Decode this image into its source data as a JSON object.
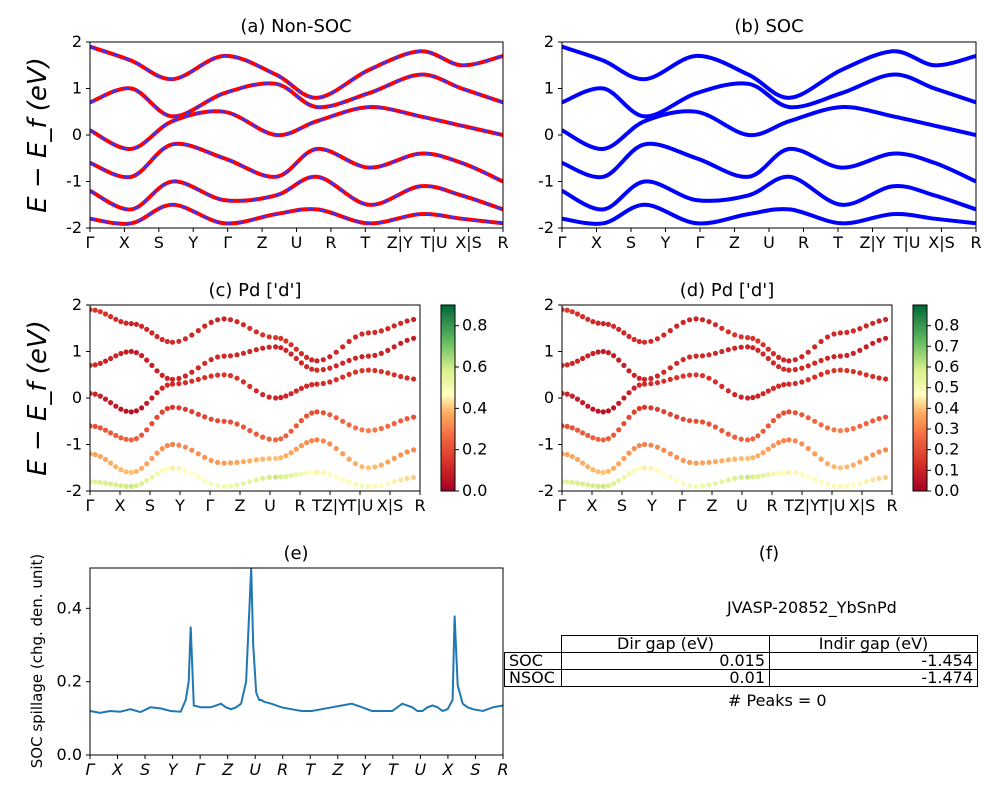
{
  "chart_data": [
    {
      "id": "a",
      "type": "line",
      "title": "(a) Non-SOC",
      "ylabel": "E − E_f (eV)",
      "ylim": [
        -2,
        2
      ],
      "yticks": [
        -2,
        -1,
        0,
        1,
        2
      ],
      "xticklabels": [
        "Γ",
        "X",
        "S",
        "Y",
        "Γ",
        "Z",
        "U",
        "R",
        "T",
        "Z|Y",
        "T|U",
        "X|S",
        "R"
      ],
      "colors": {
        "band": "#ff0000",
        "overlay": "#3333ff"
      },
      "series": [
        {
          "x": [
            0,
            40,
            80,
            130,
            180,
            220,
            270,
            320,
            360,
            400
          ],
          "y": [
            1.9,
            1.6,
            1.2,
            1.7,
            1.3,
            0.8,
            1.4,
            1.8,
            1.5,
            1.7
          ]
        },
        {
          "x": [
            0,
            40,
            80,
            130,
            180,
            220,
            270,
            320,
            360,
            400
          ],
          "y": [
            0.7,
            1.0,
            0.4,
            0.9,
            1.1,
            0.6,
            0.9,
            1.3,
            1.0,
            0.7
          ]
        },
        {
          "x": [
            0,
            40,
            80,
            130,
            180,
            220,
            270,
            320,
            360,
            400
          ],
          "y": [
            0.1,
            -0.3,
            0.3,
            0.5,
            0.0,
            0.3,
            0.6,
            0.4,
            0.2,
            0.0
          ]
        },
        {
          "x": [
            0,
            40,
            80,
            130,
            180,
            220,
            270,
            320,
            360,
            400
          ],
          "y": [
            -0.6,
            -0.9,
            -0.2,
            -0.5,
            -0.9,
            -0.3,
            -0.7,
            -0.4,
            -0.6,
            -1.0
          ]
        },
        {
          "x": [
            0,
            40,
            80,
            130,
            180,
            220,
            270,
            320,
            360,
            400
          ],
          "y": [
            -1.2,
            -1.6,
            -1.0,
            -1.4,
            -1.3,
            -0.9,
            -1.5,
            -1.1,
            -1.3,
            -1.6
          ]
        },
        {
          "x": [
            0,
            40,
            80,
            130,
            180,
            220,
            270,
            320,
            360,
            400
          ],
          "y": [
            -1.8,
            -1.9,
            -1.5,
            -1.9,
            -1.7,
            -1.6,
            -1.9,
            -1.7,
            -1.8,
            -1.9
          ]
        }
      ]
    },
    {
      "id": "b",
      "type": "line",
      "title": "(b) SOC",
      "ylim": [
        -2,
        2
      ],
      "yticks": [
        -2,
        -1,
        0,
        1,
        2
      ],
      "xticklabels": [
        "Γ",
        "X",
        "S",
        "Y",
        "Γ",
        "Z",
        "U",
        "R",
        "T",
        "Z|Y",
        "T|U",
        "X|S",
        "R"
      ],
      "colors": {
        "band": "#0000ff"
      },
      "series": [
        {
          "x": [
            0,
            40,
            80,
            130,
            180,
            220,
            270,
            320,
            360,
            400
          ],
          "y": [
            1.9,
            1.6,
            1.2,
            1.7,
            1.3,
            0.8,
            1.4,
            1.8,
            1.5,
            1.7
          ]
        },
        {
          "x": [
            0,
            40,
            80,
            130,
            180,
            220,
            270,
            320,
            360,
            400
          ],
          "y": [
            0.7,
            1.0,
            0.4,
            0.9,
            1.1,
            0.6,
            0.9,
            1.3,
            1.0,
            0.7
          ]
        },
        {
          "x": [
            0,
            40,
            80,
            130,
            180,
            220,
            270,
            320,
            360,
            400
          ],
          "y": [
            0.1,
            -0.3,
            0.3,
            0.5,
            0.0,
            0.3,
            0.6,
            0.4,
            0.2,
            0.0
          ]
        },
        {
          "x": [
            0,
            40,
            80,
            130,
            180,
            220,
            270,
            320,
            360,
            400
          ],
          "y": [
            -0.6,
            -0.9,
            -0.2,
            -0.5,
            -0.9,
            -0.3,
            -0.7,
            -0.4,
            -0.6,
            -1.0
          ]
        },
        {
          "x": [
            0,
            40,
            80,
            130,
            180,
            220,
            270,
            320,
            360,
            400
          ],
          "y": [
            -1.2,
            -1.6,
            -1.0,
            -1.4,
            -1.3,
            -0.9,
            -1.5,
            -1.1,
            -1.3,
            -1.6
          ]
        },
        {
          "x": [
            0,
            40,
            80,
            130,
            180,
            220,
            270,
            320,
            360,
            400
          ],
          "y": [
            -1.8,
            -1.9,
            -1.5,
            -1.9,
            -1.7,
            -1.6,
            -1.9,
            -1.7,
            -1.8,
            -1.9
          ]
        }
      ]
    },
    {
      "id": "c",
      "type": "scatter",
      "title": "(c)  Pd ['d']",
      "ylabel": "E − E_f (eV)",
      "ylim": [
        -2,
        2
      ],
      "yticks": [
        -2,
        -1,
        0,
        1,
        2
      ],
      "xticklabels": [
        "Γ",
        "X",
        "S",
        "Y",
        "Γ",
        "Z",
        "U",
        "R",
        "TZ|Y",
        "T|U",
        "X|S",
        "R"
      ],
      "colorbar": {
        "range": [
          0.0,
          0.9
        ],
        "ticks": [
          "0.0",
          "0.2",
          "0.4",
          "0.6",
          "0.8"
        ]
      },
      "colormap": "RdYlGn",
      "series": [
        {
          "x": [
            0,
            40,
            80,
            130,
            180,
            220,
            270,
            320
          ],
          "y": [
            1.9,
            1.6,
            1.2,
            1.7,
            1.3,
            0.8,
            1.4,
            1.7
          ],
          "weight": [
            0.15,
            0.1,
            0.12,
            0.1,
            0.15,
            0.1,
            0.12,
            0.1
          ]
        },
        {
          "x": [
            0,
            40,
            80,
            130,
            180,
            220,
            270,
            320
          ],
          "y": [
            0.7,
            1.0,
            0.4,
            0.9,
            1.1,
            0.6,
            0.9,
            1.3
          ],
          "weight": [
            0.12,
            0.08,
            0.1,
            0.12,
            0.1,
            0.12,
            0.1,
            0.08
          ]
        },
        {
          "x": [
            0,
            40,
            80,
            130,
            180,
            220,
            270,
            320
          ],
          "y": [
            0.1,
            -0.3,
            0.3,
            0.5,
            0.0,
            0.3,
            0.6,
            0.4
          ],
          "weight": [
            0.1,
            0.05,
            0.12,
            0.15,
            0.1,
            0.12,
            0.15,
            0.12
          ]
        },
        {
          "x": [
            0,
            40,
            80,
            130,
            180,
            220,
            270,
            320
          ],
          "y": [
            -0.6,
            -0.9,
            -0.2,
            -0.5,
            -0.9,
            -0.3,
            -0.7,
            -0.4
          ],
          "weight": [
            0.2,
            0.25,
            0.15,
            0.2,
            0.25,
            0.2,
            0.3,
            0.2
          ]
        },
        {
          "x": [
            0,
            40,
            80,
            130,
            180,
            220,
            270,
            320
          ],
          "y": [
            -1.2,
            -1.6,
            -1.0,
            -1.4,
            -1.3,
            -0.9,
            -1.5,
            -1.1
          ],
          "weight": [
            0.35,
            0.4,
            0.3,
            0.35,
            0.4,
            0.3,
            0.4,
            0.3
          ]
        },
        {
          "x": [
            0,
            40,
            80,
            130,
            180,
            220,
            270,
            320
          ],
          "y": [
            -1.8,
            -1.9,
            -1.5,
            -1.9,
            -1.7,
            -1.6,
            -1.9,
            -1.7
          ],
          "weight": [
            0.55,
            0.6,
            0.45,
            0.5,
            0.6,
            0.45,
            0.5,
            0.4
          ]
        }
      ]
    },
    {
      "id": "d",
      "type": "scatter",
      "title": "(d) Pd ['d']",
      "ylim": [
        -2,
        2
      ],
      "yticks": [
        -2,
        -1,
        0,
        1,
        2
      ],
      "xticklabels": [
        "Γ",
        "X",
        "S",
        "Y",
        "Γ",
        "Z",
        "U",
        "R",
        "TZ|Y",
        "T|U",
        "X|S",
        "R"
      ],
      "colorbar": {
        "range": [
          0.0,
          0.9
        ],
        "ticks": [
          "0.0",
          "0.1",
          "0.2",
          "0.3",
          "0.4",
          "0.5",
          "0.6",
          "0.7",
          "0.8"
        ]
      },
      "colormap": "RdYlGn",
      "series": [
        {
          "x": [
            0,
            40,
            80,
            130,
            180,
            220,
            270,
            320
          ],
          "y": [
            1.9,
            1.6,
            1.2,
            1.7,
            1.3,
            0.8,
            1.4,
            1.7
          ],
          "weight": [
            0.15,
            0.1,
            0.12,
            0.1,
            0.15,
            0.1,
            0.12,
            0.1
          ]
        },
        {
          "x": [
            0,
            40,
            80,
            130,
            180,
            220,
            270,
            320
          ],
          "y": [
            0.7,
            1.0,
            0.4,
            0.9,
            1.1,
            0.6,
            0.9,
            1.3
          ],
          "weight": [
            0.12,
            0.08,
            0.1,
            0.12,
            0.1,
            0.12,
            0.1,
            0.08
          ]
        },
        {
          "x": [
            0,
            40,
            80,
            130,
            180,
            220,
            270,
            320
          ],
          "y": [
            0.1,
            -0.3,
            0.3,
            0.5,
            0.0,
            0.3,
            0.6,
            0.4
          ],
          "weight": [
            0.1,
            0.05,
            0.12,
            0.15,
            0.1,
            0.12,
            0.15,
            0.12
          ]
        },
        {
          "x": [
            0,
            40,
            80,
            130,
            180,
            220,
            270,
            320
          ],
          "y": [
            -0.6,
            -0.9,
            -0.2,
            -0.5,
            -0.9,
            -0.3,
            -0.7,
            -0.4
          ],
          "weight": [
            0.2,
            0.25,
            0.15,
            0.2,
            0.25,
            0.2,
            0.3,
            0.2
          ]
        },
        {
          "x": [
            0,
            40,
            80,
            130,
            180,
            220,
            270,
            320
          ],
          "y": [
            -1.2,
            -1.6,
            -1.0,
            -1.4,
            -1.3,
            -0.9,
            -1.5,
            -1.1
          ],
          "weight": [
            0.35,
            0.4,
            0.3,
            0.35,
            0.4,
            0.3,
            0.4,
            0.3
          ]
        },
        {
          "x": [
            0,
            40,
            80,
            130,
            180,
            220,
            270,
            320
          ],
          "y": [
            -1.8,
            -1.9,
            -1.5,
            -1.9,
            -1.7,
            -1.6,
            -1.9,
            -1.7
          ],
          "weight": [
            0.55,
            0.6,
            0.45,
            0.5,
            0.6,
            0.45,
            0.5,
            0.4
          ]
        }
      ]
    },
    {
      "id": "e",
      "type": "line",
      "title": "(e)",
      "ylabel": "SOC spillage (chg. den. unit)",
      "ylim": [
        0,
        0.51
      ],
      "yticks": [
        "0.0",
        "0.2",
        "0.4"
      ],
      "xticklabels": [
        "Γ",
        "X",
        "S",
        "Y",
        "Γ",
        "Z",
        "U",
        "R",
        "T",
        "Z",
        "Y",
        "T",
        "U",
        "X",
        "S",
        "R"
      ],
      "colors": {
        "line": "#1f77b4"
      },
      "series": [
        {
          "x": [
            0,
            10,
            20,
            30,
            40,
            50,
            60,
            70,
            80,
            90,
            95,
            98,
            100,
            103,
            110,
            120,
            130,
            135,
            140,
            145,
            150,
            155,
            160,
            162,
            165,
            168,
            170,
            173,
            180,
            190,
            200,
            210,
            220,
            230,
            240,
            250,
            260,
            270,
            280,
            290,
            300,
            310,
            320,
            325,
            330,
            335,
            340,
            345,
            350,
            355,
            360,
            362,
            365,
            370,
            375,
            380,
            390,
            400,
            410
          ],
          "y": [
            0.12,
            0.115,
            0.12,
            0.118,
            0.125,
            0.117,
            0.13,
            0.127,
            0.12,
            0.118,
            0.15,
            0.2,
            0.35,
            0.135,
            0.13,
            0.13,
            0.14,
            0.13,
            0.125,
            0.13,
            0.14,
            0.2,
            0.51,
            0.3,
            0.17,
            0.15,
            0.15,
            0.145,
            0.14,
            0.13,
            0.125,
            0.12,
            0.12,
            0.125,
            0.13,
            0.135,
            0.14,
            0.13,
            0.12,
            0.12,
            0.12,
            0.14,
            0.13,
            0.12,
            0.12,
            0.13,
            0.135,
            0.13,
            0.12,
            0.125,
            0.15,
            0.38,
            0.19,
            0.14,
            0.13,
            0.125,
            0.12,
            0.13,
            0.135
          ]
        }
      ]
    }
  ],
  "panel_f": {
    "title": "(f)",
    "id_label": "JVASP-20852_YbSnPd",
    "table": {
      "headers": [
        "Dir gap (eV)",
        "Indir gap (eV)"
      ],
      "rows": [
        {
          "label": "SOC",
          "dir": "0.015",
          "indir": "-1.454"
        },
        {
          "label": "NSOC",
          "dir": "0.01",
          "indir": "-1.474"
        }
      ]
    },
    "peaks": "# Peaks = 0"
  }
}
